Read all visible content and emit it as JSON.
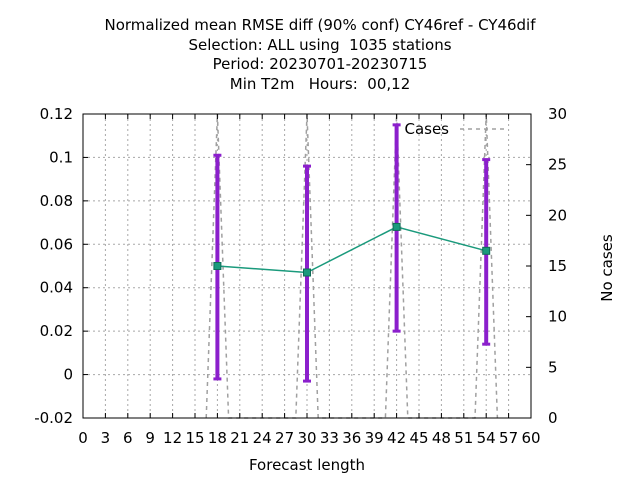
{
  "titles": {
    "line1": "Normalized mean RMSE diff (90% conf) CY46ref - CY46dif",
    "line2": "Selection: ALL using  1035 stations",
    "line3": "Period: 20230701-20230715",
    "line4": "Min T2m   Hours:  00,12"
  },
  "chart_data": {
    "type": "line",
    "xlabel": "Forecast length",
    "ylabel": "",
    "y2label": "No cases",
    "xlim": [
      0,
      60
    ],
    "ylim": [
      -0.02,
      0.12
    ],
    "y2lim": [
      0,
      30
    ],
    "x_ticks": [
      "0",
      "3",
      "6",
      "9",
      "12",
      "15",
      "18",
      "21",
      "24",
      "27",
      "30",
      "33",
      "36",
      "39",
      "42",
      "45",
      "48",
      "51",
      "54",
      "57",
      "60"
    ],
    "y_ticks": [
      "-0.02",
      "0",
      "0.02",
      "0.04",
      "0.06",
      "0.08",
      "0.1",
      "0.12"
    ],
    "y2_ticks": [
      "0",
      "5",
      "10",
      "15",
      "20",
      "25",
      "30"
    ],
    "grid": true,
    "legend_position": "top-right",
    "series": [
      {
        "axis": "y",
        "color": "#1a9a7c",
        "x": [
          18,
          30,
          42,
          54
        ],
        "values": [
          0.05,
          0.047,
          0.068,
          0.057
        ],
        "ci_low": [
          -0.002,
          -0.003,
          0.02,
          0.014
        ],
        "ci_high": [
          0.101,
          0.096,
          0.115,
          0.099
        ],
        "errorbar_color": "#8b1fcc"
      },
      {
        "name": "Cases",
        "axis": "y2",
        "color": "#a0a0a0",
        "x": [
          16.5,
          18,
          19.5,
          28.5,
          30,
          31.5,
          40.5,
          42,
          43.5,
          52.5,
          54,
          55.5
        ],
        "values": [
          0,
          30,
          0,
          0,
          30,
          0,
          0,
          30,
          0,
          0,
          30,
          0
        ]
      }
    ]
  }
}
